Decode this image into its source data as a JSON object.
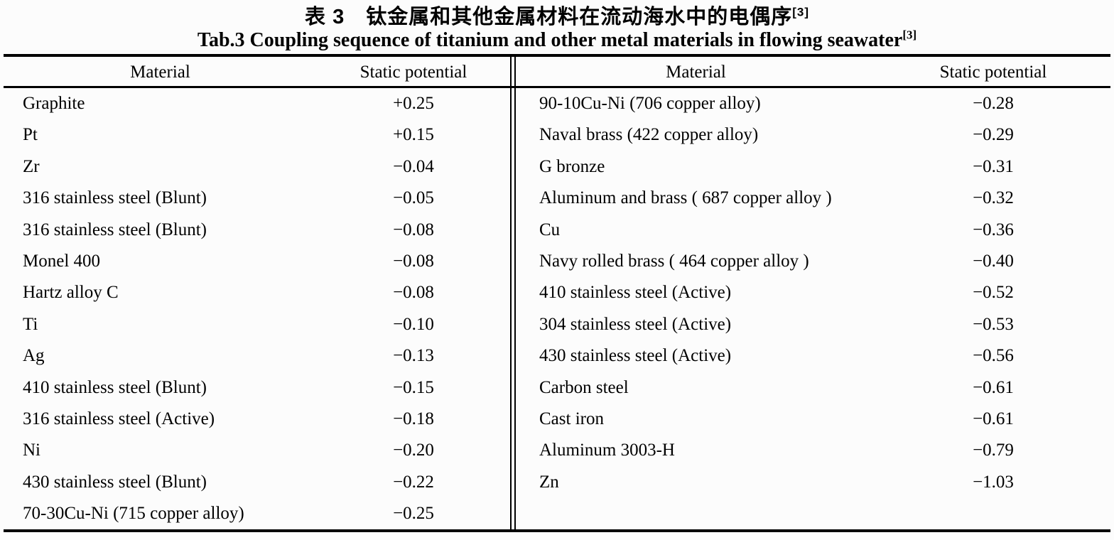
{
  "title": {
    "zh": "表 3　钛金属和其他金属材料在流动海水中的电偶序",
    "zh_ref": "[3]",
    "en": "Tab.3 Coupling sequence of titanium and other metal materials in flowing seawater",
    "en_ref": "[3]"
  },
  "colors": {
    "text": "#000000",
    "background": "#fcfcfc",
    "rule": "#000000"
  },
  "table": {
    "headers": {
      "material": "Material",
      "potential": "Static potential"
    },
    "left_rows": [
      {
        "material": "Graphite",
        "potential": "+0.25"
      },
      {
        "material": "Pt",
        "potential": "+0.15"
      },
      {
        "material": "Zr",
        "potential": "−0.04"
      },
      {
        "material": "316 stainless steel (Blunt)",
        "potential": "−0.05"
      },
      {
        "material": "316 stainless steel (Blunt)",
        "potential": "−0.08"
      },
      {
        "material": "Monel 400",
        "potential": "−0.08"
      },
      {
        "material": "Hartz alloy C",
        "potential": "−0.08"
      },
      {
        "material": "Ti",
        "potential": "−0.10"
      },
      {
        "material": "Ag",
        "potential": "−0.13"
      },
      {
        "material": "410 stainless steel (Blunt)",
        "potential": "−0.15"
      },
      {
        "material": "316 stainless steel (Active)",
        "potential": "−0.18"
      },
      {
        "material": "Ni",
        "potential": "−0.20"
      },
      {
        "material": "430 stainless steel (Blunt)",
        "potential": "−0.22"
      },
      {
        "material": "70-30Cu-Ni (715 copper alloy)",
        "potential": "−0.25"
      }
    ],
    "right_rows": [
      {
        "material": "90-10Cu-Ni (706 copper alloy)",
        "potential": "−0.28"
      },
      {
        "material": "Naval brass (422 copper alloy)",
        "potential": "−0.29"
      },
      {
        "material": "G bronze",
        "potential": "−0.31"
      },
      {
        "material": "Aluminum and brass ( 687 copper alloy )",
        "potential": "−0.32"
      },
      {
        "material": "Cu",
        "potential": "−0.36"
      },
      {
        "material": "Navy rolled brass ( 464 copper alloy )",
        "potential": "−0.40"
      },
      {
        "material": "410 stainless steel (Active)",
        "potential": "−0.52"
      },
      {
        "material": "304 stainless steel (Active)",
        "potential": "−0.53"
      },
      {
        "material": "430 stainless steel (Active)",
        "potential": "−0.56"
      },
      {
        "material": "Carbon steel",
        "potential": "−0.61"
      },
      {
        "material": "Cast iron",
        "potential": "−0.61"
      },
      {
        "material": "Aluminum 3003-H",
        "potential": "−0.79"
      },
      {
        "material": "Zn",
        "potential": "−1.03"
      }
    ]
  }
}
